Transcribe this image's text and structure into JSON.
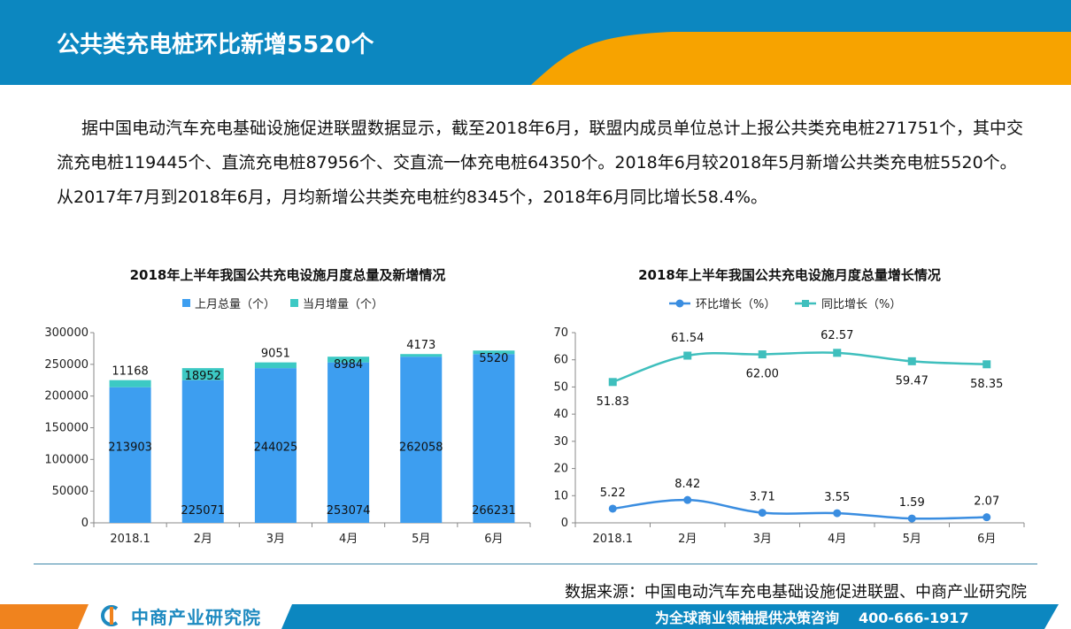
{
  "header": {
    "title": "公共类充电桩环比新增5520个",
    "colors": {
      "blue": "#0c87c0",
      "orange": "#f7a300"
    }
  },
  "body": {
    "paragraph": "据中国电动汽车充电基础设施促进联盟数据显示，截至2018年6月，联盟内成员单位总计上报公共类充电桩271751个，其中交流充电桩119445个、直流充电桩87956个、交直流一体充电桩64350个。2018年6月较2018年5月新增公共类充电桩5520个。从2017年7月到2018年6月，月均新增公共类充电桩约8345个，2018年6月同比增长58.4%。"
  },
  "chart_data": [
    {
      "type": "bar",
      "stacked": true,
      "title": "2018年上半年我国公共充电设施月度总量及新增情况",
      "categories": [
        "2018.1",
        "2月",
        "3月",
        "4月",
        "5月",
        "6月"
      ],
      "series": [
        {
          "name": "上月总量（个）",
          "color": "#3d9ef0",
          "values": [
            213903,
            225071,
            244025,
            253074,
            262058,
            266231
          ]
        },
        {
          "name": "当月增量（个）",
          "color": "#3cc9c4",
          "values": [
            11168,
            18952,
            9051,
            8984,
            4173,
            5520
          ]
        }
      ],
      "ylim": [
        0,
        300000
      ],
      "yticks": [
        "0",
        "50000",
        "100000",
        "150000",
        "200000",
        "250000",
        "300000"
      ],
      "legend": "top",
      "grid": false
    },
    {
      "type": "line",
      "title": "2018年上半年我国公共充电设施月度总量增长情况",
      "categories": [
        "2018.1",
        "2月",
        "3月",
        "4月",
        "5月",
        "6月"
      ],
      "series": [
        {
          "name": "环比增长（%）",
          "color": "#3a8de0",
          "marker": "circle",
          "values": [
            5.22,
            8.42,
            3.71,
            3.55,
            1.59,
            2.07
          ]
        },
        {
          "name": "同比增长（%）",
          "color": "#3fbfbd",
          "marker": "square",
          "values": [
            51.83,
            61.54,
            62.0,
            62.57,
            59.47,
            58.35
          ]
        }
      ],
      "value_labels": [
        [
          "5.22",
          "8.42",
          "3.71",
          "3.55",
          "1.59",
          "2.07"
        ],
        [
          "51.83",
          "61.54",
          "62.00",
          "62.57",
          "59.47",
          "58.35"
        ]
      ],
      "ylim": [
        0,
        70
      ],
      "yticks": [
        "0",
        "10",
        "20",
        "30",
        "40",
        "50",
        "60",
        "70"
      ],
      "legend": "top",
      "grid": false,
      "smooth": true
    }
  ],
  "footer": {
    "source": "数据来源：中国电动汽车充电基础设施促进联盟、中商产业研究院",
    "logo_text": "中商产业研究院",
    "slogan": "为全球商业领袖提供决策咨询",
    "phone": "400-666-1917"
  }
}
